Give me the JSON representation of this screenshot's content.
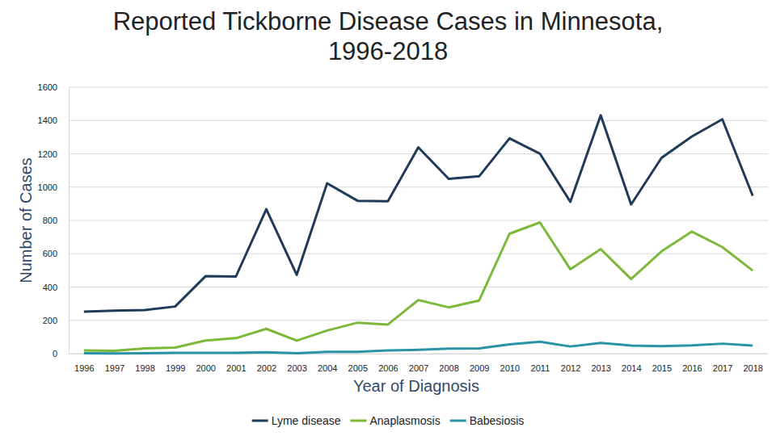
{
  "chart_data": {
    "type": "line",
    "title": "Reported Tickborne Disease Cases in Minnesota, 1996-2018",
    "x_label": "Year of Diagnosis",
    "y_label": "Number of Cases",
    "categories": [
      "1996",
      "1997",
      "1998",
      "1999",
      "2000",
      "2001",
      "2002",
      "2003",
      "2004",
      "2005",
      "2006",
      "2007",
      "2008",
      "2009",
      "2010",
      "2011",
      "2012",
      "2013",
      "2014",
      "2015",
      "2016",
      "2017",
      "2018"
    ],
    "series": [
      {
        "name": "Lyme disease",
        "color": "#1f3b57",
        "values": [
          252,
          258,
          262,
          283,
          465,
          463,
          867,
          473,
          1023,
          918,
          915,
          1239,
          1050,
          1065,
          1293,
          1201,
          912,
          1431,
          896,
          1176,
          1304,
          1407,
          948
        ]
      },
      {
        "name": "Anaplasmosis",
        "color": "#7cb93b",
        "values": [
          19,
          17,
          31,
          36,
          79,
          93,
          149,
          78,
          139,
          186,
          175,
          322,
          278,
          319,
          720,
          788,
          507,
          628,
          448,
          614,
          733,
          640,
          499
        ]
      },
      {
        "name": "Babesiosis",
        "color": "#2b93a6",
        "values": [
          2,
          1,
          2,
          5,
          5,
          5,
          8,
          3,
          11,
          11,
          19,
          23,
          30,
          32,
          56,
          72,
          43,
          64,
          49,
          45,
          50,
          60,
          49
        ]
      }
    ],
    "ylim": [
      0,
      1600
    ],
    "yticks": [
      0,
      200,
      400,
      600,
      800,
      1000,
      1200,
      1400,
      1600
    ],
    "grid": true,
    "legend": "bottom"
  }
}
